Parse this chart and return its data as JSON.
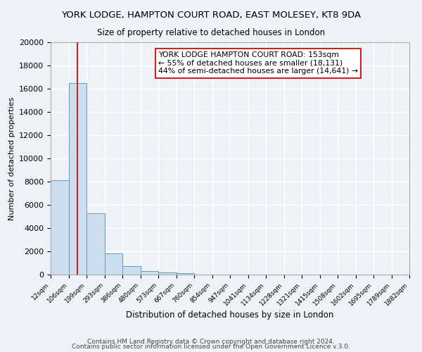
{
  "title": "YORK LODGE, HAMPTON COURT ROAD, EAST MOLESEY, KT8 9DA",
  "subtitle": "Size of property relative to detached houses in London",
  "xlabel": "Distribution of detached houses by size in London",
  "ylabel": "Number of detached properties",
  "bin_labels": [
    "12sqm",
    "106sqm",
    "199sqm",
    "293sqm",
    "386sqm",
    "480sqm",
    "573sqm",
    "667sqm",
    "760sqm",
    "854sqm",
    "947sqm",
    "1041sqm",
    "1134sqm",
    "1228sqm",
    "1321sqm",
    "1415sqm",
    "1508sqm",
    "1602sqm",
    "1695sqm",
    "1789sqm",
    "1882sqm"
  ],
  "bar_values": [
    8100,
    16500,
    5300,
    1800,
    700,
    300,
    200,
    150,
    0,
    0,
    0,
    0,
    0,
    0,
    0,
    0,
    0,
    0,
    0,
    0
  ],
  "bar_color": "#ccddf0",
  "bar_edge_color": "#6699bb",
  "vline_color": "#cc2222",
  "annotation_title": "YORK LODGE HAMPTON COURT ROAD: 153sqm",
  "annotation_line1": "← 55% of detached houses are smaller (18,131)",
  "annotation_line2": "44% of semi-detached houses are larger (14,641) →",
  "annotation_box_color": "#ffffff",
  "annotation_box_edge": "#cc2222",
  "ylim": [
    0,
    20000
  ],
  "yticks": [
    0,
    2000,
    4000,
    6000,
    8000,
    10000,
    12000,
    14000,
    16000,
    18000,
    20000
  ],
  "footer1": "Contains HM Land Registry data © Crown copyright and database right 2024.",
  "footer2": "Contains public sector information licensed under the Open Government Licence v.3.0.",
  "background_color": "#eef2f7",
  "grid_color": "#ffffff",
  "vline_bin_index": 1.5
}
